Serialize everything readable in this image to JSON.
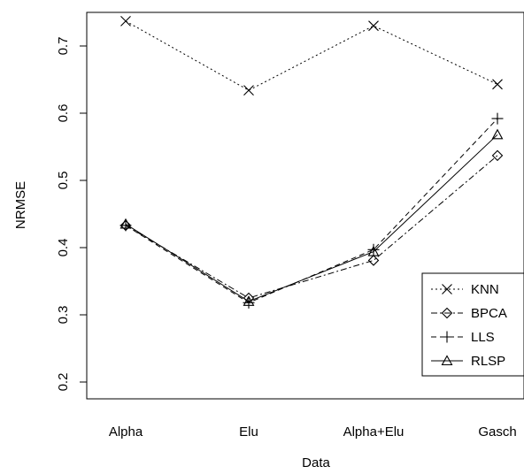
{
  "chart_data": {
    "type": "line",
    "categories": [
      "Alpha",
      "Elu",
      "Alpha+Elu",
      "Gasch"
    ],
    "xlabel": "Data",
    "ylabel": "NRMSE",
    "ylim": [
      0.175,
      0.75
    ],
    "yticks": [
      0.2,
      0.3,
      0.4,
      0.5,
      0.6,
      0.7
    ],
    "ytick_labels": [
      "0.2",
      "0.3",
      "0.4",
      "0.5",
      "0.6",
      "0.7"
    ],
    "grid": false,
    "legend_position": "bottom-right",
    "series": [
      {
        "name": "KNN",
        "values": [
          0.737,
          0.634,
          0.73,
          0.643
        ],
        "marker": "x",
        "line": "dotted"
      },
      {
        "name": "BPCA",
        "values": [
          0.433,
          0.325,
          0.381,
          0.537
        ],
        "marker": "diamond",
        "line": "dashdot"
      },
      {
        "name": "LLS",
        "values": [
          0.433,
          0.318,
          0.397,
          0.592
        ],
        "marker": "plus",
        "line": "dashed"
      },
      {
        "name": "RLSP",
        "values": [
          0.435,
          0.32,
          0.394,
          0.568
        ],
        "marker": "triangle",
        "line": "solid"
      }
    ]
  }
}
